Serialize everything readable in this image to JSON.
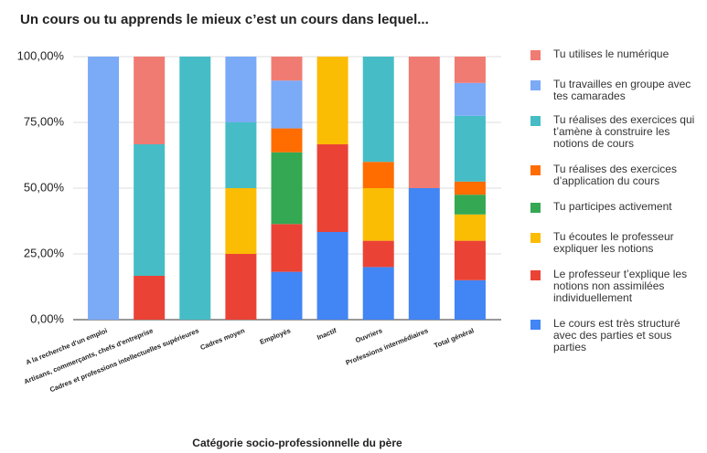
{
  "chart_data": {
    "type": "stacked_bar",
    "title": "Un cours ou tu apprends le mieux c’est un cours dans lequel...",
    "x_label": "Catégorie socio-professionnelle du père",
    "categories": [
      "A la recherche d'un emploi",
      "Artisans, commerçants, chefs d'entreprise",
      "Cadres et professions intellectuelles supérieures",
      "Cadres moyen",
      "Employés",
      "Inactif",
      "Ouvriers",
      "Professions intermédiaires",
      "Total général"
    ],
    "series": [
      {
        "name": "Tu utilises le numérique",
        "color": "#f07b72",
        "values": [
          0,
          33.33,
          0,
          0,
          9.09,
          0,
          0,
          50,
          10
        ]
      },
      {
        "name": "Tu travailles en groupe avec tes camarades",
        "color": "#7baaf7",
        "values": [
          100,
          0,
          0,
          25,
          18.18,
          0,
          0,
          0,
          12.5
        ]
      },
      {
        "name": "Tu réalises des exercices qui t’amène à construire les notions de cours",
        "color": "#46bdc6",
        "values": [
          0,
          50,
          100,
          25,
          0,
          0,
          40,
          0,
          25
        ]
      },
      {
        "name": "Tu réalises des exercices d’application du cours",
        "color": "#ff6d01",
        "values": [
          0,
          0,
          0,
          0,
          9.09,
          0,
          10,
          0,
          5
        ]
      },
      {
        "name": "Tu participes activement",
        "color": "#34a853",
        "values": [
          0,
          0,
          0,
          0,
          27.27,
          0,
          0,
          0,
          7.5
        ]
      },
      {
        "name": "Tu écoutes le professeur expliquer les notions",
        "color": "#fbbc04",
        "values": [
          0,
          0,
          0,
          25,
          0,
          33.33,
          20,
          0,
          10
        ]
      },
      {
        "name": "Le professeur t’explique les notions non assimilées individuellement",
        "color": "#ea4335",
        "values": [
          0,
          16.67,
          0,
          25,
          18.18,
          33.33,
          10,
          0,
          15
        ]
      },
      {
        "name": "Le cours est très structuré avec des parties et sous parties",
        "color": "#4285f4",
        "values": [
          0,
          0,
          0,
          0,
          18.18,
          33.33,
          20,
          50,
          15
        ]
      }
    ],
    "ylim": [
      0,
      100
    ],
    "yticks": [
      {
        "value": 0,
        "label": "0,00%"
      },
      {
        "value": 25,
        "label": "25,00%"
      },
      {
        "value": 50,
        "label": "50,00%"
      },
      {
        "value": 75,
        "label": "75,00%"
      },
      {
        "value": 100,
        "label": "100,00%"
      }
    ],
    "grid": true,
    "legend": "right"
  }
}
